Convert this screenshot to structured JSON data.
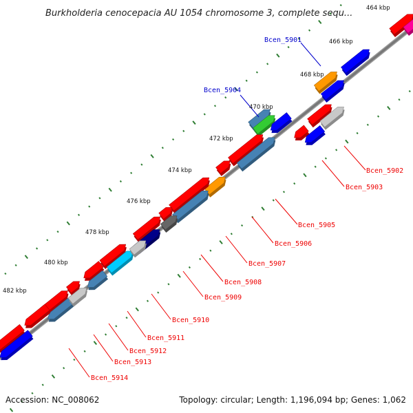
{
  "title": "Burkholderia cenocepacia AU 1054 chromosome 3, complete sequ...",
  "accession_label": "Accession: NC_008062",
  "summary_label": "Topology: circular; Length: 1,196,094 bp; Genes: 1,062",
  "colors": {
    "backbone": "#777777",
    "tick_major": "#2e7d32",
    "tick_minor": "#2e7d32",
    "leader_red": "#ee0000",
    "leader_blue": "#0000cc",
    "red": "#ff0000",
    "blue": "#0000ff",
    "steelblue": "#4682b4",
    "orange": "#ff9900",
    "gray": "#c8c8c8",
    "darkgray": "#666666",
    "navy": "#000088",
    "cyan": "#00ccff",
    "green": "#33cc33",
    "pink": "#ff0099"
  },
  "kbp_labels": [
    "464 kbp",
    "466 kbp",
    "468 kbp",
    "470 kbp",
    "472 kbp",
    "474 kbp",
    "476 kbp",
    "478 kbp",
    "480 kbp",
    "482 kbp"
  ],
  "gene_labels": [
    {
      "name": "Bcen_5901",
      "color": "blue"
    },
    {
      "name": "Bcen_5904",
      "color": "blue"
    },
    {
      "name": "Bcen_5902",
      "color": "red"
    },
    {
      "name": "Bcen_5903",
      "color": "red"
    },
    {
      "name": "Bcen_5905",
      "color": "red"
    },
    {
      "name": "Bcen_5906",
      "color": "red"
    },
    {
      "name": "Bcen_5907",
      "color": "red"
    },
    {
      "name": "Bcen_5908",
      "color": "red"
    },
    {
      "name": "Bcen_5909",
      "color": "red"
    },
    {
      "name": "Bcen_5910",
      "color": "red"
    },
    {
      "name": "Bcen_5911",
      "color": "red"
    },
    {
      "name": "Bcen_5912",
      "color": "red"
    },
    {
      "name": "Bcen_5913",
      "color": "red"
    },
    {
      "name": "Bcen_5914",
      "color": "red"
    }
  ]
}
